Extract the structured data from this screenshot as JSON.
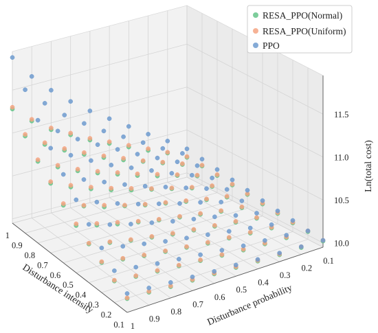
{
  "chart_data": {
    "type": "scatter",
    "projection": "3d",
    "grid": true,
    "legend_position": "top-right",
    "xlabel": "Disturbance probability",
    "ylabel": "Disturbance intensity",
    "zlabel": "Ln(total cost)",
    "x_ticks": [
      "1",
      "0.9",
      "0.8",
      "0.7",
      "0.6",
      "0.5",
      "0.4",
      "0.3",
      "0.2",
      "0.1"
    ],
    "y_ticks": [
      "1",
      "0.9",
      "0.8",
      "0.7",
      "0.6",
      "0.5",
      "0.4",
      "0.3",
      "0.2",
      "0.1"
    ],
    "z_ticks": [
      "10.0",
      "10.5",
      "11.0",
      "11.5"
    ],
    "xlim": [
      1.0,
      0.1
    ],
    "ylim": [
      1.0,
      0.1
    ],
    "zlim": [
      9.95,
      11.95
    ],
    "x": [
      1.0,
      0.9,
      0.8,
      0.7,
      0.6,
      0.5,
      0.4,
      0.3,
      0.2,
      0.1
    ],
    "y": [
      1.0,
      0.9,
      0.8,
      0.7,
      0.6,
      0.5,
      0.4,
      0.3,
      0.2,
      0.1
    ],
    "series": [
      {
        "name": "RESA_PPO(Normal)",
        "color": "#66c48a",
        "values": [
          [
            11.28,
            11.08,
            10.92,
            10.8,
            10.68,
            10.58,
            10.48,
            10.38,
            10.29,
            10.18
          ],
          [
            11.08,
            10.92,
            10.79,
            10.68,
            10.58,
            10.49,
            10.41,
            10.33,
            10.25,
            10.17
          ],
          [
            10.9,
            10.77,
            10.66,
            10.57,
            10.49,
            10.41,
            10.34,
            10.28,
            10.21,
            10.15
          ],
          [
            10.76,
            10.65,
            10.56,
            10.48,
            10.41,
            10.35,
            10.29,
            10.23,
            10.18,
            10.13
          ],
          [
            10.62,
            10.54,
            10.46,
            10.4,
            10.34,
            10.29,
            10.24,
            10.19,
            10.15,
            10.11
          ],
          [
            10.5,
            10.43,
            10.37,
            10.32,
            10.27,
            10.23,
            10.19,
            10.15,
            10.12,
            10.09
          ],
          [
            10.4,
            10.34,
            10.29,
            10.25,
            10.21,
            10.18,
            10.15,
            10.12,
            10.09,
            10.07
          ],
          [
            10.3,
            10.26,
            10.22,
            10.19,
            10.16,
            10.13,
            10.11,
            10.09,
            10.07,
            10.05
          ],
          [
            10.2,
            10.17,
            10.15,
            10.13,
            10.11,
            10.09,
            10.07,
            10.06,
            10.05,
            10.04
          ],
          [
            10.11,
            10.1,
            10.08,
            10.07,
            10.06,
            10.05,
            10.04,
            10.03,
            10.03,
            10.02
          ]
        ]
      },
      {
        "name": "RESA_PPO(Uniform)",
        "color": "#f4a582",
        "values": [
          [
            11.3,
            11.1,
            10.94,
            10.82,
            10.7,
            10.6,
            10.5,
            10.4,
            10.3,
            10.19
          ],
          [
            11.1,
            10.94,
            10.81,
            10.7,
            10.6,
            10.51,
            10.42,
            10.34,
            10.26,
            10.18
          ],
          [
            10.92,
            10.79,
            10.68,
            10.59,
            10.51,
            10.43,
            10.36,
            10.29,
            10.22,
            10.16
          ],
          [
            10.78,
            10.67,
            10.58,
            10.5,
            10.43,
            10.36,
            10.3,
            10.24,
            10.19,
            10.14
          ],
          [
            10.64,
            10.55,
            10.48,
            10.41,
            10.35,
            10.3,
            10.25,
            10.2,
            10.16,
            10.12
          ],
          [
            10.52,
            10.45,
            10.39,
            10.33,
            10.28,
            10.24,
            10.2,
            10.16,
            10.13,
            10.1
          ],
          [
            10.41,
            10.35,
            10.3,
            10.26,
            10.22,
            10.19,
            10.16,
            10.13,
            10.1,
            10.08
          ],
          [
            10.31,
            10.27,
            10.23,
            10.2,
            10.17,
            10.14,
            10.12,
            10.1,
            10.08,
            10.06
          ],
          [
            10.21,
            10.18,
            10.16,
            10.14,
            10.12,
            10.1,
            10.08,
            10.07,
            10.06,
            10.05
          ],
          [
            10.12,
            10.11,
            10.09,
            10.08,
            10.07,
            10.06,
            10.05,
            10.04,
            10.04,
            10.03
          ]
        ]
      },
      {
        "name": "PPO",
        "color": "#6f9bcf",
        "values": [
          [
            11.88,
            11.6,
            11.38,
            11.19,
            11.02,
            10.87,
            10.72,
            10.57,
            10.43,
            10.28
          ],
          [
            11.62,
            11.4,
            11.2,
            11.04,
            10.89,
            10.76,
            10.63,
            10.5,
            10.38,
            10.25
          ],
          [
            11.38,
            11.19,
            11.03,
            10.9,
            10.78,
            10.66,
            10.55,
            10.44,
            10.33,
            10.22
          ],
          [
            11.17,
            11.02,
            10.89,
            10.77,
            10.67,
            10.57,
            10.47,
            10.38,
            10.28,
            10.19
          ],
          [
            10.98,
            10.85,
            10.75,
            10.65,
            10.56,
            10.48,
            10.4,
            10.32,
            10.24,
            10.16
          ],
          [
            10.8,
            10.7,
            10.61,
            10.53,
            10.46,
            10.39,
            10.33,
            10.26,
            10.2,
            10.13
          ],
          [
            10.63,
            10.55,
            10.48,
            10.42,
            10.36,
            10.31,
            10.26,
            10.2,
            10.15,
            10.1
          ],
          [
            10.47,
            10.41,
            10.36,
            10.31,
            10.27,
            10.23,
            10.19,
            10.15,
            10.11,
            10.08
          ],
          [
            10.32,
            10.28,
            10.24,
            10.21,
            10.18,
            10.15,
            10.12,
            10.1,
            10.08,
            10.05
          ],
          [
            10.17,
            10.15,
            10.13,
            10.11,
            10.09,
            10.08,
            10.06,
            10.05,
            10.04,
            10.03
          ]
        ]
      }
    ]
  }
}
